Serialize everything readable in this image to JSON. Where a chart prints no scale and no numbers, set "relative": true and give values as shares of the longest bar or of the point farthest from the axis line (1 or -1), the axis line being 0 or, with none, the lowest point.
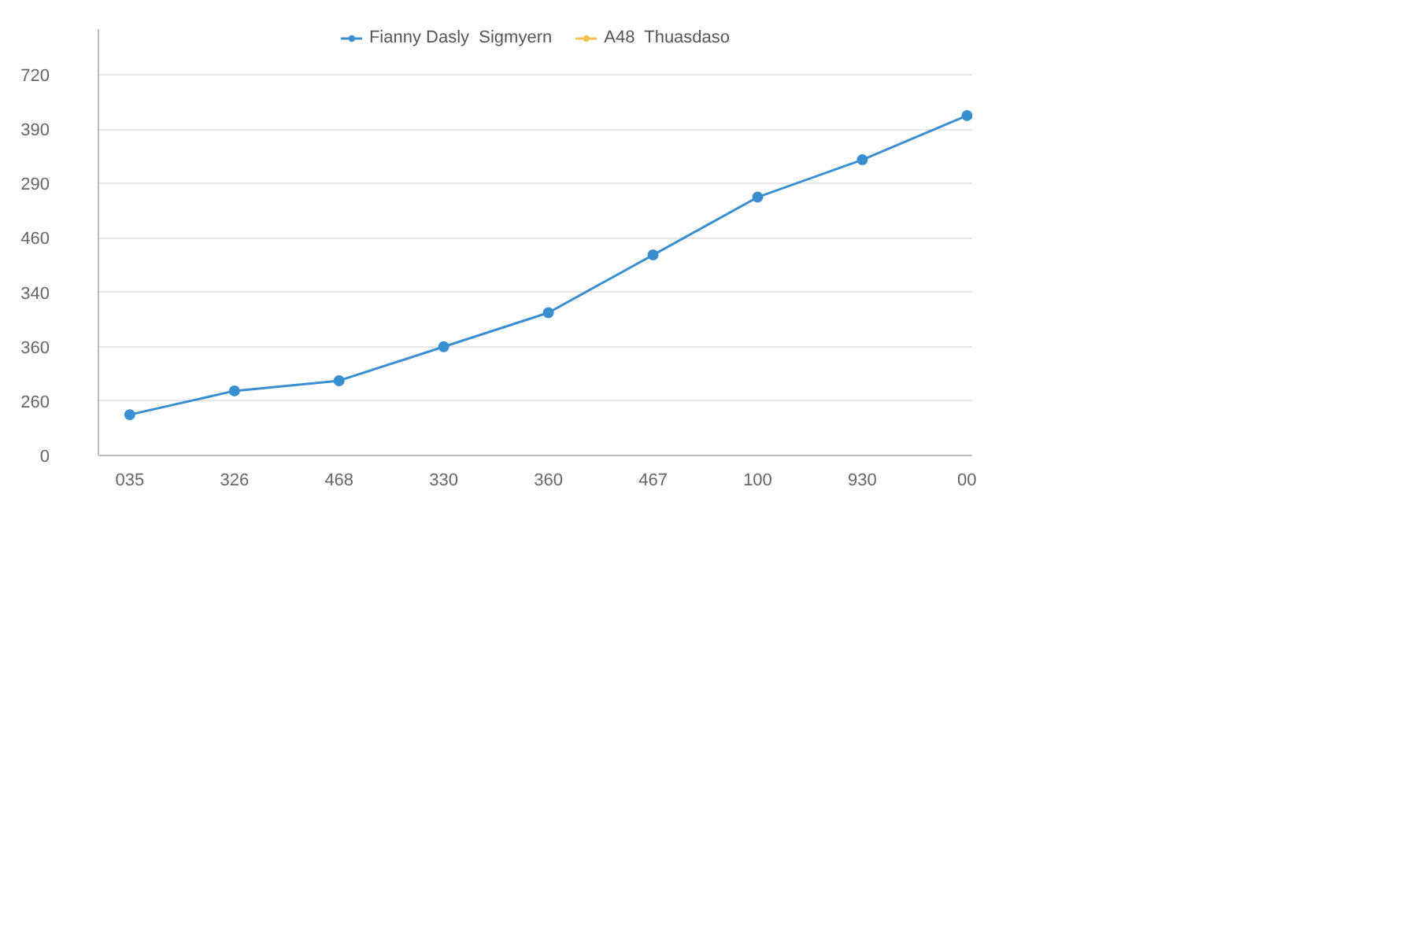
{
  "chart_data": {
    "type": "line",
    "relative": true,
    "categories": [
      "035",
      "326",
      "468",
      "330",
      "360",
      "467",
      "100",
      "930",
      "00"
    ],
    "series": [
      {
        "name": "Fianny Dasly  Sigmyern",
        "color": "#3a8fd0",
        "values": [
          0.12,
          0.19,
          0.22,
          0.32,
          0.42,
          0.59,
          0.76,
          0.87,
          1
        ]
      },
      {
        "name": "A48  Thuasdaso",
        "color": "#f2c14e",
        "values": [
          null,
          null,
          null,
          null,
          null,
          null,
          null,
          null,
          null
        ]
      }
    ],
    "annotations": [
      "0",
      "260",
      "360",
      "340",
      "460",
      "290",
      "390",
      "720"
    ],
    "grid": "y",
    "legend": "top",
    "marker": "circle",
    "line_style": "solid"
  }
}
